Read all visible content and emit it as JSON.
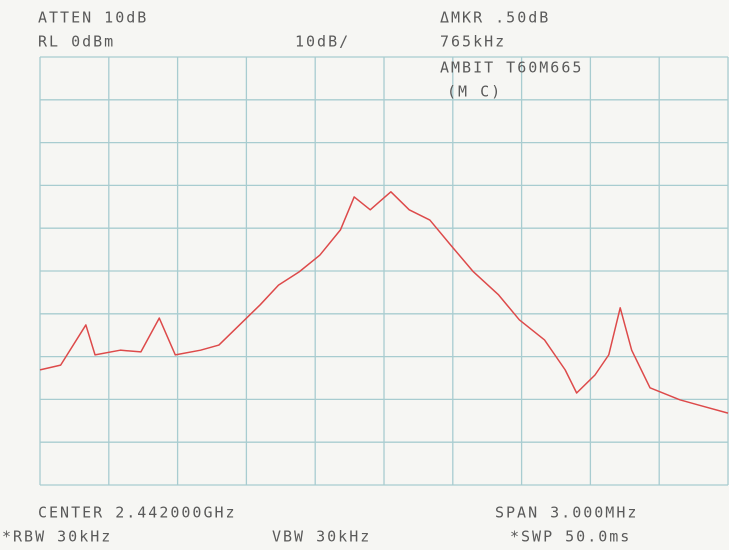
{
  "chart_data": {
    "type": "line",
    "annotations": [
      "ATTEN 10dB",
      "RL 0dBm",
      "10dB/",
      "ΔMKR .50dB",
      "765kHz",
      "AMBIT T60M665",
      "(M C)",
      "CENTER 2.442000GHz",
      "SPAN 3.000MHz",
      "*RBW 30kHz",
      "VBW 30kHz",
      "*SWP 50.0ms"
    ],
    "x": [
      2440.5,
      2440.59,
      2440.7,
      2440.74,
      2440.85,
      2440.94,
      2441.02,
      2441.09,
      2441.2,
      2441.28,
      2441.37,
      2441.46,
      2441.54,
      2441.63,
      2441.72,
      2441.81,
      2441.87,
      2441.94,
      2442.03,
      2442.11,
      2442.2,
      2442.29,
      2442.39,
      2442.5,
      2442.59,
      2442.7,
      2442.79,
      2442.84,
      2442.92,
      2442.98,
      2443.03,
      2443.08,
      2443.16,
      2443.29,
      2443.37,
      2443.5
    ],
    "series": [
      {
        "color": "#dd4a4a",
        "values": [
          -73.1,
          -72.0,
          -62.6,
          -69.6,
          -68.5,
          -68.9,
          -61.0,
          -69.6,
          -68.5,
          -67.3,
          -62.6,
          -57.9,
          -53.3,
          -50.2,
          -46.3,
          -40.4,
          -32.7,
          -35.7,
          -31.5,
          -35.7,
          -38.1,
          -43.9,
          -50.2,
          -55.6,
          -61.4,
          -66.1,
          -73.1,
          -78.5,
          -74.3,
          -69.6,
          -58.6,
          -68.5,
          -77.3,
          -80.1,
          -81.3,
          -83.2
        ]
      }
    ],
    "xlim": [
      2440.5,
      2443.5
    ],
    "xticks": [
      2440.5,
      2440.8,
      2441.1,
      2441.4,
      2441.7,
      2442.0,
      2442.3,
      2442.6,
      2442.9,
      2443.2,
      2443.5
    ],
    "ylim": [
      -100,
      0
    ],
    "yticks": [
      -100,
      -90,
      -80,
      -70,
      -60,
      -50,
      -40,
      -30,
      -20,
      -10,
      0
    ],
    "grid": true,
    "grid_color": "#a8ccd0"
  }
}
